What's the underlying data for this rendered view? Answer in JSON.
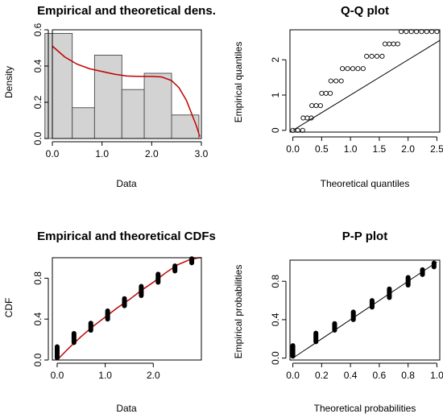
{
  "colors": {
    "bar_fill": "#d3d3d3",
    "density_line": "#c00000",
    "cdf_line": "#c00000",
    "points": "#000000",
    "reference_line": "#000000"
  },
  "chart_data": [
    {
      "type": "bar",
      "title": "Empirical and theoretical dens.",
      "xlabel": "Data",
      "ylabel": "Density",
      "xlim": [
        0,
        3
      ],
      "ylim": [
        0,
        0.6
      ],
      "xticks": [
        "0.0",
        "1.0",
        "2.0",
        "3.0"
      ],
      "yticks": [
        "0.0",
        "0.2",
        "0.4",
        "0.6"
      ],
      "bins": [
        [
          -0.15,
          0.4
        ],
        [
          0.4,
          0.85
        ],
        [
          0.85,
          1.4
        ],
        [
          1.4,
          1.85
        ],
        [
          1.85,
          2.4
        ],
        [
          2.4,
          2.95
        ]
      ],
      "values": [
        0.58,
        0.17,
        0.46,
        0.27,
        0.36,
        0.13
      ],
      "density_curve": {
        "x": [
          0.0,
          0.25,
          0.5,
          0.75,
          1.0,
          1.25,
          1.5,
          1.75,
          2.0,
          2.2,
          2.4,
          2.55,
          2.7,
          2.8,
          2.9,
          2.97
        ],
        "y": [
          0.51,
          0.45,
          0.41,
          0.385,
          0.37,
          0.355,
          0.345,
          0.343,
          0.343,
          0.34,
          0.32,
          0.28,
          0.21,
          0.14,
          0.07,
          0.01
        ]
      }
    },
    {
      "type": "scatter",
      "title": "Q-Q plot",
      "xlabel": "Theoretical quantiles",
      "ylabel": "Empirical quantiles",
      "xlim": [
        -0.05,
        2.55
      ],
      "ylim": [
        -0.05,
        2.85
      ],
      "xticks": [
        "0.0",
        "0.5",
        "1.0",
        "1.5",
        "2.0",
        "2.5"
      ],
      "yticks": [
        "0",
        "1",
        "2"
      ],
      "levels": [
        {
          "y": 0.0,
          "x_from": 0.0,
          "x_to": 0.17
        },
        {
          "y": 0.35,
          "x_from": 0.18,
          "x_to": 0.32
        },
        {
          "y": 0.7,
          "x_from": 0.33,
          "x_to": 0.48
        },
        {
          "y": 1.05,
          "x_from": 0.5,
          "x_to": 0.65
        },
        {
          "y": 1.4,
          "x_from": 0.66,
          "x_to": 0.84
        },
        {
          "y": 1.75,
          "x_from": 0.86,
          "x_to": 1.22
        },
        {
          "y": 2.1,
          "x_from": 1.28,
          "x_to": 1.55
        },
        {
          "y": 2.45,
          "x_from": 1.6,
          "x_to": 1.82
        },
        {
          "y": 2.8,
          "x_from": 1.88,
          "x_to": 2.5
        }
      ],
      "reference_line": {
        "x": [
          0,
          2.55
        ],
        "y": [
          0,
          2.55
        ]
      }
    },
    {
      "type": "line",
      "title": "Empirical and theoretical CDFs",
      "xlabel": "Data",
      "ylabel": "CDF",
      "xlim": [
        -0.1,
        3.0
      ],
      "ylim": [
        0,
        1.0
      ],
      "xticks": [
        "0.0",
        "1.0",
        "2.0"
      ],
      "yticks": [
        "0.0",
        "0.4",
        "0.8"
      ],
      "steps": [
        {
          "x": 0.0,
          "y_from": 0.02,
          "y_to": 0.13
        },
        {
          "x": 0.35,
          "y_from": 0.17,
          "y_to": 0.26
        },
        {
          "x": 0.7,
          "y_from": 0.29,
          "y_to": 0.36
        },
        {
          "x": 1.05,
          "y_from": 0.4,
          "y_to": 0.48
        },
        {
          "x": 1.4,
          "y_from": 0.53,
          "y_to": 0.6
        },
        {
          "x": 1.75,
          "y_from": 0.63,
          "y_to": 0.72
        },
        {
          "x": 2.1,
          "y_from": 0.76,
          "y_to": 0.84
        },
        {
          "x": 2.45,
          "y_from": 0.87,
          "y_to": 0.92
        },
        {
          "x": 2.8,
          "y_from": 0.95,
          "y_to": 0.99
        }
      ],
      "cdf_curve": {
        "x": [
          0.0,
          0.25,
          0.5,
          0.75,
          1.0,
          1.25,
          1.5,
          1.75,
          2.0,
          2.25,
          2.5,
          2.75,
          2.95,
          3.0
        ],
        "y": [
          0.0,
          0.12,
          0.23,
          0.33,
          0.42,
          0.51,
          0.59,
          0.68,
          0.76,
          0.85,
          0.93,
          0.98,
          1.0,
          1.0
        ]
      }
    },
    {
      "type": "scatter",
      "title": "P-P plot",
      "xlabel": "Theoretical probabilities",
      "ylabel": "Empirical probabilities",
      "xlim": [
        -0.02,
        1.02
      ],
      "ylim": [
        -0.02,
        1.02
      ],
      "xticks": [
        "0.0",
        "0.2",
        "0.4",
        "0.6",
        "0.8",
        "1.0"
      ],
      "yticks": [
        "0.0",
        "0.4",
        "0.8"
      ],
      "groups": [
        {
          "x": 0.0,
          "y_from": 0.02,
          "y_to": 0.13
        },
        {
          "x": 0.16,
          "y_from": 0.17,
          "y_to": 0.26
        },
        {
          "x": 0.29,
          "y_from": 0.29,
          "y_to": 0.36
        },
        {
          "x": 0.42,
          "y_from": 0.4,
          "y_to": 0.48
        },
        {
          "x": 0.55,
          "y_from": 0.53,
          "y_to": 0.6
        },
        {
          "x": 0.67,
          "y_from": 0.63,
          "y_to": 0.72
        },
        {
          "x": 0.8,
          "y_from": 0.76,
          "y_to": 0.84
        },
        {
          "x": 0.9,
          "y_from": 0.87,
          "y_to": 0.92
        },
        {
          "x": 0.98,
          "y_from": 0.95,
          "y_to": 0.99
        }
      ],
      "reference_line": {
        "x": [
          0,
          1
        ],
        "y": [
          0,
          1
        ]
      }
    }
  ]
}
